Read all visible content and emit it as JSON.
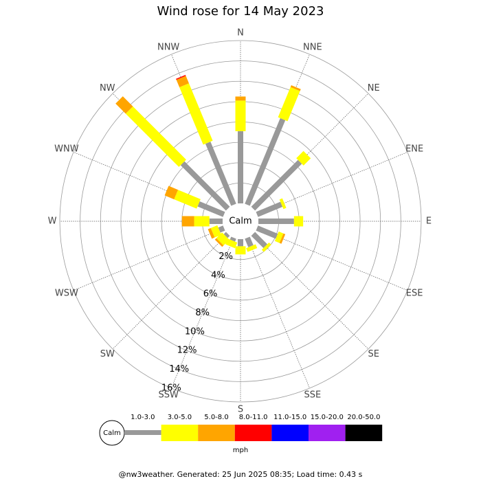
{
  "chart_data": {
    "type": "windrose",
    "title": "Wind rose for 14 May 2023",
    "categories": [
      "N",
      "NNE",
      "NE",
      "ENE",
      "E",
      "ESE",
      "SE",
      "SSE",
      "S",
      "SSW",
      "SW",
      "WSW",
      "W",
      "WNW",
      "NW",
      "NNW"
    ],
    "series": [
      {
        "name": "1.0-3.0",
        "color": "#999999",
        "values": [
          7.1,
          9.1,
          6.5,
          2.6,
          3.5,
          2.1,
          1.7,
          0.9,
          0.7,
          0.3,
          0.3,
          0.5,
          1.3,
          2.7,
          6.3,
          6.6
        ]
      },
      {
        "name": "3.0-5.0",
        "color": "#ffff00",
        "values": [
          3.0,
          3.2,
          1.0,
          0.3,
          0.9,
          0.5,
          0.3,
          0.4,
          0.8,
          0.6,
          0.8,
          0.7,
          1.5,
          2.4,
          7.4,
          6.1
        ]
      },
      {
        "name": "5.0-8.0",
        "color": "#ffa500",
        "values": [
          0.4,
          0.2,
          0,
          0,
          0,
          0.2,
          0,
          0,
          0,
          0,
          0.2,
          0.3,
          1.2,
          1.0,
          1.4,
          0.8
        ]
      },
      {
        "name": "8.0-11.0",
        "color": "#ff0000",
        "values": [
          0,
          0,
          0,
          0,
          0,
          0,
          0,
          0,
          0,
          0,
          0,
          0,
          0,
          0,
          0,
          0.1
        ]
      },
      {
        "name": "11.0-15.0",
        "color": "#0000ff",
        "values": [
          0,
          0,
          0,
          0,
          0,
          0,
          0,
          0,
          0,
          0,
          0,
          0,
          0,
          0,
          0,
          0
        ]
      },
      {
        "name": "15.0-20.0",
        "color": "#a020f0",
        "values": [
          0,
          0,
          0,
          0,
          0,
          0,
          0,
          0,
          0,
          0,
          0,
          0,
          0,
          0,
          0,
          0
        ]
      },
      {
        "name": "20.0-50.0",
        "color": "#000000",
        "values": [
          0,
          0,
          0,
          0,
          0,
          0,
          0,
          0,
          0,
          0,
          0,
          0,
          0,
          0,
          0,
          0
        ]
      }
    ],
    "ylim": [
      0,
      16
    ],
    "yticks": [
      {
        "value": 2,
        "label": "2%"
      },
      {
        "value": 4,
        "label": "4%"
      },
      {
        "value": 6,
        "label": "6%"
      },
      {
        "value": 8,
        "label": "8%"
      },
      {
        "value": 10,
        "label": "10%"
      },
      {
        "value": 12,
        "label": "12%"
      },
      {
        "value": 14,
        "label": "14%"
      },
      {
        "value": 16,
        "label": "16%"
      }
    ],
    "calm_label": "Calm",
    "legend_unit": "mph",
    "footer": "@nw3weather. Generated: 25 Jun 2025 08:35; Load time: 0.43 s"
  }
}
